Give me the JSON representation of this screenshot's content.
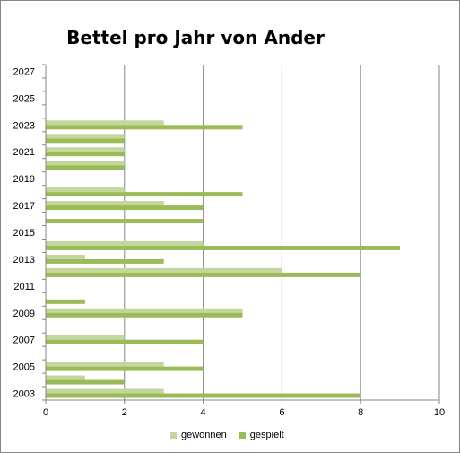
{
  "chart_data": {
    "type": "bar",
    "orientation": "horizontal",
    "title": "Bettel pro Jahr von Ander",
    "categories": [
      "2003",
      "2004",
      "2005",
      "2006",
      "2007",
      "2008",
      "2009",
      "2010",
      "2011",
      "2012",
      "2013",
      "2014",
      "2015",
      "2016",
      "2017",
      "2018",
      "2019",
      "2020",
      "2021",
      "2022",
      "2023",
      "2024",
      "2025",
      "2026",
      "2027"
    ],
    "y_tick_labels": [
      "2003",
      "2005",
      "2007",
      "2009",
      "2011",
      "2013",
      "2015",
      "2017",
      "2019",
      "2021",
      "2023",
      "2025",
      "2027"
    ],
    "series": [
      {
        "name": "gewonnen",
        "color": "#C3D69B",
        "values": [
          3,
          1,
          3,
          0,
          2,
          0,
          5,
          0,
          0,
          6,
          1,
          4,
          0,
          0,
          3,
          2,
          0,
          2,
          2,
          2,
          3,
          0,
          0,
          0,
          0
        ]
      },
      {
        "name": "gespielt",
        "color": "#9BBB59",
        "values": [
          8,
          2,
          4,
          0,
          4,
          0,
          5,
          1,
          0,
          8,
          3,
          9,
          0,
          4,
          4,
          5,
          0,
          2,
          2,
          2,
          5,
          0,
          0,
          0,
          0
        ]
      }
    ],
    "xlim": [
      0,
      10
    ],
    "x_ticks": [
      0,
      2,
      4,
      6,
      8,
      10
    ],
    "xlabel": "",
    "ylabel": "",
    "grid": "vertical",
    "legend_position": "bottom"
  }
}
